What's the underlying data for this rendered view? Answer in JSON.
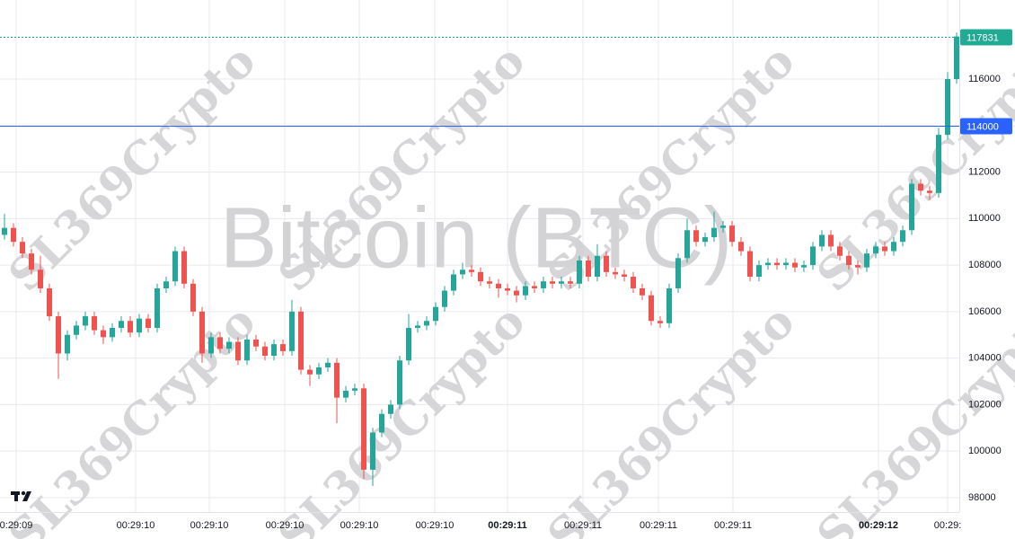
{
  "chart_data": {
    "type": "candlestick",
    "title": "Bitcoin (BTC)",
    "watermark": "SL369Crypto",
    "up_color": "#26a69a",
    "down_color": "#ef5350",
    "ylim": [
      97380,
      119400
    ],
    "yticks": [
      98000,
      100000,
      102000,
      104000,
      106000,
      108000,
      110000,
      112000,
      114000,
      116000
    ],
    "xlim": [
      -0.5,
      106.3
    ],
    "xticks": [
      {
        "value": 1.3,
        "label": "0:29:09"
      },
      {
        "value": 14.6,
        "label": "00:29:10"
      },
      {
        "value": 22.8,
        "label": "00:29:10"
      },
      {
        "value": 31.2,
        "label": "00:29:10"
      },
      {
        "value": 39.5,
        "label": "00:29:10"
      },
      {
        "value": 47.9,
        "label": "00:29:10"
      },
      {
        "value": 56,
        "label": "00:29:11",
        "bold": true
      },
      {
        "value": 64.4,
        "label": "00:29:11"
      },
      {
        "value": 72.8,
        "label": "00:29:11"
      },
      {
        "value": 81.1,
        "label": "00:29:11"
      },
      {
        "value": 97.3,
        "label": "00:29:12",
        "bold": true
      },
      {
        "value": 105,
        "label": "00:29:"
      }
    ],
    "grid": true,
    "price_lines": [
      {
        "value": 117831,
        "color": "#22ab94",
        "style": "dotted"
      },
      {
        "value": 114000,
        "color": "#2962ff",
        "style": "solid"
      }
    ],
    "ohlc": [
      [
        109300,
        110200,
        109100,
        109600
      ],
      [
        109600,
        109800,
        108800,
        109000
      ],
      [
        109000,
        109200,
        108300,
        108500
      ],
      [
        108500,
        108700,
        107600,
        107800
      ],
      [
        107800,
        108400,
        106800,
        107000
      ],
      [
        107000,
        107200,
        105600,
        105800
      ],
      [
        105800,
        106000,
        103100,
        104200
      ],
      [
        104200,
        105200,
        103900,
        105000
      ],
      [
        105000,
        105600,
        104800,
        105400
      ],
      [
        105400,
        106000,
        105200,
        105800
      ],
      [
        105800,
        106000,
        105000,
        105200
      ],
      [
        105200,
        105400,
        104600,
        104900
      ],
      [
        104900,
        105500,
        104700,
        105300
      ],
      [
        105300,
        105800,
        105100,
        105600
      ],
      [
        105600,
        105800,
        104900,
        105100
      ],
      [
        105100,
        105900,
        104900,
        105700
      ],
      [
        105700,
        105900,
        105100,
        105300
      ],
      [
        105300,
        107200,
        105100,
        107000
      ],
      [
        107000,
        107500,
        106800,
        107300
      ],
      [
        107300,
        108800,
        107100,
        108600
      ],
      [
        108600,
        108800,
        107000,
        107200
      ],
      [
        107200,
        107400,
        105800,
        106000
      ],
      [
        106000,
        106200,
        103800,
        104200
      ],
      [
        104200,
        105100,
        104000,
        104900
      ],
      [
        104900,
        105100,
        104200,
        104400
      ],
      [
        104400,
        104900,
        104200,
        104700
      ],
      [
        104700,
        104900,
        103700,
        103900
      ],
      [
        103900,
        105000,
        103700,
        104800
      ],
      [
        104800,
        105000,
        104300,
        104500
      ],
      [
        104500,
        104700,
        103900,
        104100
      ],
      [
        104100,
        104800,
        103900,
        104600
      ],
      [
        104600,
        104800,
        104100,
        104300
      ],
      [
        104300,
        106500,
        104100,
        106000
      ],
      [
        106000,
        106200,
        103300,
        103500
      ],
      [
        103500,
        103700,
        102800,
        103300
      ],
      [
        103300,
        103800,
        103100,
        103600
      ],
      [
        103600,
        104000,
        103400,
        103800
      ],
      [
        103800,
        104000,
        101200,
        102300
      ],
      [
        102300,
        102800,
        102100,
        102600
      ],
      [
        102600,
        102900,
        102400,
        102700
      ],
      [
        102700,
        102900,
        98800,
        99200
      ],
      [
        99200,
        101000,
        98500,
        100800
      ],
      [
        100800,
        101800,
        100600,
        101600
      ],
      [
        101600,
        102200,
        101400,
        102000
      ],
      [
        102000,
        104100,
        101800,
        103900
      ],
      [
        103900,
        105900,
        103700,
        105300
      ],
      [
        105300,
        105600,
        105100,
        105400
      ],
      [
        105400,
        105800,
        105200,
        105600
      ],
      [
        105600,
        106400,
        105400,
        106200
      ],
      [
        106200,
        107100,
        106000,
        106900
      ],
      [
        106900,
        107800,
        106700,
        107600
      ],
      [
        107600,
        108100,
        107400,
        107800
      ],
      [
        107800,
        108000,
        107500,
        107700
      ],
      [
        107700,
        107900,
        107100,
        107300
      ],
      [
        107300,
        107500,
        107000,
        107200
      ],
      [
        107200,
        107400,
        106600,
        107000
      ],
      [
        107000,
        107200,
        106700,
        106900
      ],
      [
        106900,
        107100,
        106400,
        106700
      ],
      [
        106700,
        107300,
        106500,
        107100
      ],
      [
        107100,
        107300,
        106800,
        107000
      ],
      [
        107000,
        107500,
        106800,
        107300
      ],
      [
        107300,
        107500,
        107000,
        107200
      ],
      [
        107200,
        107500,
        107000,
        107300
      ],
      [
        107300,
        107500,
        107000,
        107200
      ],
      [
        107200,
        108400,
        107000,
        108200
      ],
      [
        108200,
        108400,
        107300,
        107500
      ],
      [
        107500,
        108900,
        107300,
        108400
      ],
      [
        108400,
        108600,
        107500,
        107700
      ],
      [
        107700,
        107900,
        107400,
        107600
      ],
      [
        107600,
        107800,
        107300,
        107500
      ],
      [
        107500,
        107700,
        106800,
        107000
      ],
      [
        107000,
        107200,
        106500,
        106700
      ],
      [
        106700,
        106900,
        105400,
        105600
      ],
      [
        105600,
        105800,
        105300,
        105500
      ],
      [
        105500,
        107200,
        105300,
        107000
      ],
      [
        107000,
        108500,
        106800,
        108300
      ],
      [
        108300,
        110000,
        108100,
        109500
      ],
      [
        109500,
        109700,
        108800,
        109000
      ],
      [
        109000,
        109400,
        108800,
        109200
      ],
      [
        109200,
        110300,
        109000,
        109600
      ],
      [
        109600,
        109900,
        109400,
        109700
      ],
      [
        109700,
        109900,
        108800,
        109000
      ],
      [
        109000,
        109200,
        108400,
        108600
      ],
      [
        108600,
        108800,
        107300,
        107500
      ],
      [
        107500,
        108200,
        107300,
        108000
      ],
      [
        108000,
        108300,
        107800,
        108100
      ],
      [
        108100,
        108300,
        107800,
        108000
      ],
      [
        108000,
        108300,
        107800,
        108100
      ],
      [
        108100,
        108300,
        107700,
        107900
      ],
      [
        107900,
        108200,
        107700,
        108000
      ],
      [
        108000,
        109000,
        107800,
        108800
      ],
      [
        108800,
        109500,
        108600,
        109300
      ],
      [
        109300,
        109500,
        108600,
        108800
      ],
      [
        108800,
        109000,
        108200,
        108400
      ],
      [
        108400,
        108600,
        107800,
        108000
      ],
      [
        108000,
        108200,
        107600,
        107900
      ],
      [
        107900,
        108700,
        107700,
        108500
      ],
      [
        108500,
        109000,
        108300,
        108800
      ],
      [
        108800,
        109000,
        108400,
        108600
      ],
      [
        108600,
        109200,
        108400,
        109000
      ],
      [
        109000,
        109700,
        108800,
        109500
      ],
      [
        109500,
        111700,
        109300,
        111500
      ],
      [
        111500,
        111700,
        111000,
        111200
      ],
      [
        111200,
        111400,
        110800,
        111100
      ],
      [
        111100,
        113900,
        110900,
        113600
      ],
      [
        113600,
        116300,
        113400,
        116000
      ],
      [
        116000,
        118000,
        115800,
        117831
      ]
    ]
  }
}
